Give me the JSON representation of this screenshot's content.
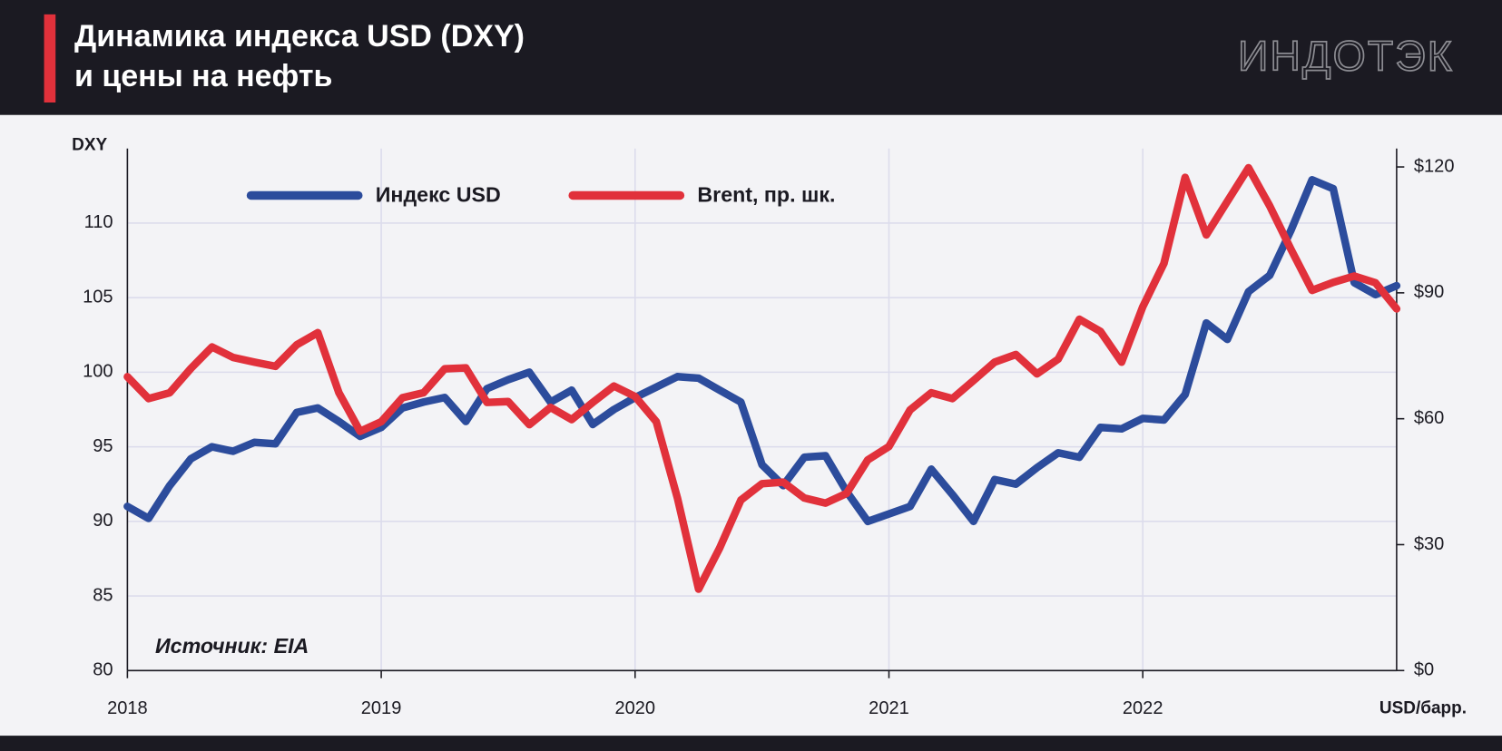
{
  "chart_data": {
    "type": "line",
    "title": "Динамика индекса USD (DXY)\nи цены на нефть",
    "logo": "ИНДОТЭК",
    "source": "Источник: EIA",
    "y_label": "DXY",
    "y2_label": "USD/барр.",
    "categories": [
      "2018",
      null,
      null,
      null,
      null,
      null,
      null,
      null,
      null,
      null,
      null,
      null,
      "2019",
      null,
      null,
      null,
      null,
      null,
      null,
      null,
      null,
      null,
      null,
      null,
      "2020",
      null,
      null,
      null,
      null,
      null,
      null,
      null,
      null,
      null,
      null,
      null,
      "2021",
      null,
      null,
      null,
      null,
      null,
      null,
      null,
      null,
      null,
      null,
      null,
      "2022",
      null,
      null,
      null,
      null,
      null,
      null,
      null,
      null,
      null,
      null,
      null,
      null
    ],
    "ylim": [
      80,
      115
    ],
    "yticks": [
      80,
      85,
      90,
      95,
      100,
      105,
      110
    ],
    "y2lim": [
      0,
      124.4
    ],
    "y2ticks": [
      {
        "value": 0,
        "label": "$0"
      },
      {
        "value": 30,
        "label": "$30"
      },
      {
        "value": 60,
        "label": "$60"
      },
      {
        "value": 90,
        "label": "$90"
      },
      {
        "value": 120,
        "label": "$120"
      }
    ],
    "grid": true,
    "series": [
      {
        "name": "Индекс USD",
        "color": "#2c4c9c",
        "values": [
          91.0,
          90.2,
          92.4,
          94.2,
          95.0,
          94.7,
          95.3,
          95.2,
          97.3,
          97.6,
          96.7,
          95.7,
          96.3,
          97.6,
          98.0,
          98.3,
          96.7,
          98.9,
          99.5,
          100.0,
          98.0,
          98.8,
          96.5,
          97.5,
          98.3,
          99.0,
          99.7,
          99.6,
          98.8,
          98.0,
          93.8,
          92.4,
          94.3,
          94.4,
          92.0,
          90.0,
          90.5,
          91.0,
          93.5,
          91.8,
          90.0,
          92.8,
          92.5,
          93.6,
          94.6,
          94.3,
          96.3,
          96.2,
          96.9,
          96.8,
          98.5,
          103.3,
          102.2,
          105.4,
          106.5,
          109.5,
          112.9,
          112.3,
          106.0,
          105.2,
          105.8
        ]
      },
      {
        "name": "Brent, пр. шк.",
        "color": "#e1313b",
        "axis": "y2",
        "values": [
          70.0,
          64.8,
          66.2,
          72.0,
          77.1,
          74.6,
          73.5,
          72.5,
          77.6,
          80.5,
          66.2,
          57.0,
          59.3,
          65.0,
          66.2,
          71.9,
          72.1,
          63.9,
          64.1,
          58.6,
          62.7,
          59.8,
          63.9,
          67.8,
          65.3,
          59.3,
          41.1,
          19.4,
          29.2,
          40.6,
          44.5,
          44.9,
          41.1,
          39.9,
          42.2,
          50.2,
          53.4,
          62.1,
          66.2,
          64.8,
          69.1,
          73.5,
          75.3,
          70.7,
          74.2,
          83.7,
          80.8,
          73.5,
          86.7,
          97.0,
          117.5,
          103.8,
          111.8,
          119.8,
          110.7,
          100.4,
          90.6,
          92.5,
          94.0,
          92.4,
          86.2
        ]
      }
    ]
  }
}
